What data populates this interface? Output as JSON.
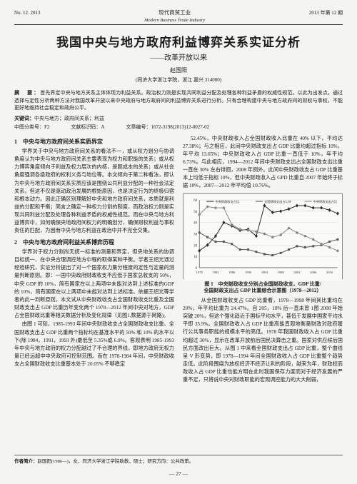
{
  "header": {
    "left": "No. 12. 2013",
    "center_cn": "现代商贸工业",
    "center_en": "Modern Business Trade Industry",
    "right": "2013 年第 12 期"
  },
  "title": "我国中央与地方政府利益博弈关系实证分析",
  "subtitle": "——改革开放以来",
  "author": "赵国阳",
  "affiliation": "(同济大学浙江学院，浙江 嘉兴 314000)",
  "abstract_label": "摘　要：",
  "abstract": "首先界定中央与地方关系主体体现为利益关系。政治权力则是实现共同利益分配及处理各种利益矛盾的权威性规范。以此为出发点，通过选择与定性分析两种方法对我国改革开放以来中央政府与地方政府间的利益博弈关系进行分析。只有合理构建中央与地方政府间的财权与事权，不能更好地维持社会稳定和政府公平。",
  "keywords_label": "关键词：",
  "keywords": "中央与地方；政府间关系；利益",
  "clc_label": "中图分类号：",
  "clc": "F2",
  "doc_code_label": "文献标识码：",
  "doc_code": "A",
  "article_id_label": "文章编号：",
  "article_id": "1672-3198(2013)12-0027-02",
  "sec1_title": "1　中央与地方政府间关系实质界定",
  "sec1_p1": "学界关于中央与地方政府间关系的看法不一，或从权力划分与协调角度认为中央与地方政府间关系主要表现为权力和职能的关系；或从权力博弈角度倾向于利益及权力层次的内核，是颇成本的关系；或从社会角度强调各级政府的权利义务与地位等。本文倾向于第二种看法，即认为中央与地方政府间关系实质应该是围绕公共利益分配的一种社会法定关系。但这不仅是驱动政治发展的根始原因，也是决定行为的终极归宿和根本动力。因此正确区别理解好中央和地方政府间关系，本质就是利益的分配和平衡；简言之确定一种权力分割的制度，而政治权力则是实现共同利益分配及处理各种利益矛盾的权威性规范。而在中央与地方利益博弈中，如何确保央地政府间权力的明确划分，确保财权利益与事权责任的匹配，为因而中央与地方利益在政治中并不完全交集。",
  "sec2_title": "2　中央与地方政府间利益关系博弈历程",
  "sec2_p1": "学界对于权力分割尚无统一标准的测量和界定，但央地关系的协调目标统一、在中央合理调控地方中程的取得某种平衡。学者王绍光通过经验研究，实证分析提出了对一个国家权力集分程度的定性与定量的测量判断原则。即：一国中央政府财政收支不应低于国家总收支的 50%，中央 GDP 的 10%，简有国家在以上两项中未能对达到上述标准的GDP 的 10%，简有国家在以上两项中未能对达到上述标准。依据王绍光等学者的此一判断原则，本文试从中央财政收支占全国财政收支比重及全国财政支出占 GDP 比重历年变化两个 1978—2012 年间中央对地方，GDP 占全国财政比重等相关数据分析及变化规律（见图1,数据源于网路)。",
  "sec2_p2": "由图 1 可知，1985-1993 年间中央财政收支占全国财政收支比重、全国财政支出占 GDP 比重两个指标均在基准水平的 50% 和 10% 的水平以下(除 1984，1991，1993 外)最低至 5.35%或 6.9%。客观表明 1985-1993 年中央与地方政府的权力分配越过了不合理的界线，即地方政府无权力量已经远超中中央政府可控制范围。而在 1978-1984 年间，中央财政收支占全国财政收支比重基本处于 20.05% 不够稳定",
  "chart": {
    "type": "line",
    "x_years": [
      1978,
      1980,
      1982,
      1984,
      1986,
      1988,
      1990,
      1992,
      1994,
      1996,
      1998,
      2000,
      2002,
      2004,
      2006,
      2008,
      2010,
      2012
    ],
    "xlim": [
      1978,
      2012
    ],
    "ylim": [
      0,
      60
    ],
    "ytick_step": 10,
    "series": [
      {
        "name": "中央财政收支占比",
        "color": "#2a2a2a",
        "marker": "diamond",
        "values": [
          15,
          20,
          28,
          40,
          37,
          33,
          34,
          28,
          55,
          49,
          50,
          52,
          55,
          55,
          53,
          53,
          51,
          48
        ]
      },
      {
        "name": "全国财政支出占GDP",
        "color": "#555555",
        "marker": "square",
        "values": [
          31,
          27,
          23,
          23,
          21,
          16,
          16,
          14,
          12,
          11,
          13,
          16,
          19,
          18,
          19,
          20,
          23,
          25
        ]
      },
      {
        "name": "中央财政支出占比",
        "color": "#888888",
        "marker": "circle",
        "values": [
          47,
          54,
          53,
          53,
          38,
          34,
          33,
          32,
          30,
          27,
          29,
          35,
          31,
          28,
          25,
          21,
          18,
          15
        ]
      }
    ],
    "background_color": "#fafaf8",
    "grid_color": "#cccccc",
    "line_width": 1,
    "marker_size": 2.5,
    "caption_line1": "图 1　中央财政收支分别占全国财政收支、GDP 比重/",
    "caption_line2": "全国财政支出占 GDP 比重综合示意图（1978—2012）"
  },
  "right_col_text": "52.45%，中央财政收入占全国财政收入比重在 40% 以下，平均达 27.38%；与之相应，此间中央财政支出占 GDP 比重均超过指标 10%，年平均 13.65%；中央财政收入占 GDP 比重一直低于 10%，年平均 6.73%。与此相应，1994—2012 年间中央财政支出占全国财政支出比重一直在 30% 左右徘徊，2008 年例外。此间中央财政收支占 GDP 比重基本上均低于指标 10%，但中央财政收入占 GPD 比重自 2007 年始终于标据 10%，2007—2012 年平均值 10.76%。",
  "right_col_p2": "　　从全国财政收支占 GDP 比重看，1978—1998 年间其比重均在 20%，年平均比重为 24.47%。自 205，10% 后一直未曾 1图 2008 年始突破 20%，但这个强化趋近于国标平均水平，甚低于发展中国家平均水平即 35.9%。全国财政收入占 GDP 比重高能直观地衡量财政对政府履行公共事务职能的规模水平的高低。1978 年我国财政收入占 GDP 比重均超过 30%，显示在改革开放前后国民决算击之重。国家对供应候后国民方面改出巨大。从图 1 中来看全国财政支出占 GDP 比重，整个曲线呈 V 形变势，即 1978—1994 年间全国财政收入占 GDP 比重整个趋势走低。此阶段围绕为放权经济不经济让利的阶段，越来为年，财政权而政收入占 GDP 比重也能方明在此时我国保存力度而对于经济发展的严重不足，只将说中央对财政职能的宏观调控能力的大大削弱，",
  "footer_label": "作者简介：",
  "footer_text": "赵国阳(1986—)，女，同济大学浙江学院助教，硕士；研究方向：公共政策。",
  "page_num": "— 27 —"
}
